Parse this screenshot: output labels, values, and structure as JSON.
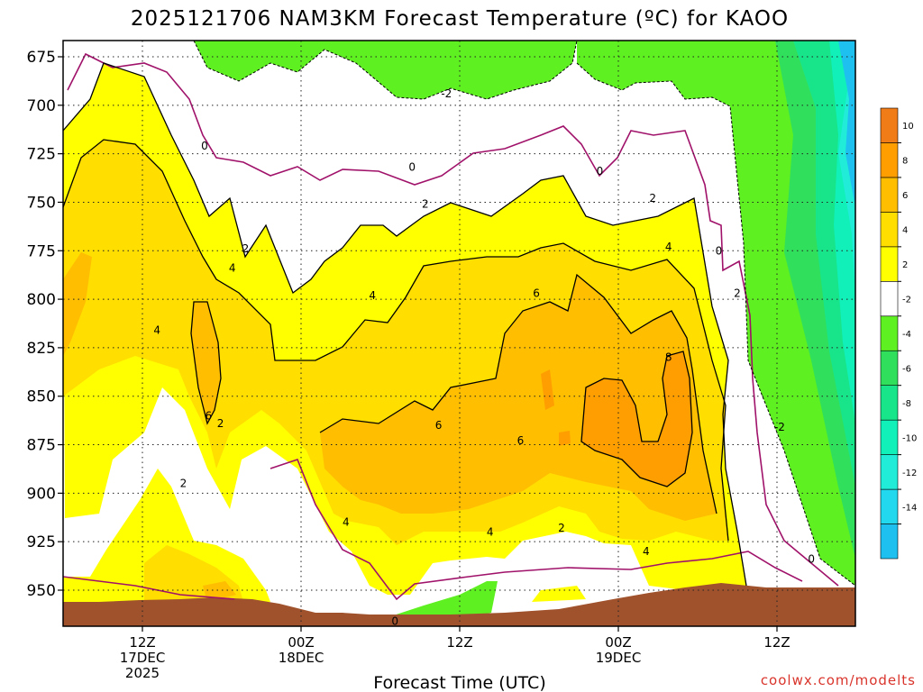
{
  "chart_data": {
    "type": "heatmap",
    "title": "2025121706 NAM3KM Forecast Temperature (ºC) for KAOO",
    "xlabel": "Forecast Time (UTC)",
    "ylabel": "",
    "credit": "coolwx.com/modelts",
    "y_axis": {
      "inverted": true,
      "ylim": [
        960,
        665
      ],
      "ticks": [
        "675",
        "700",
        "725",
        "750",
        "775",
        "800",
        "825",
        "850",
        "875",
        "900",
        "925",
        "950"
      ]
    },
    "x_axis": {
      "ticks": [
        {
          "line1": "12Z",
          "line2": "17DEC",
          "line3": "2025",
          "hour": 6
        },
        {
          "line1": "00Z",
          "line2": "18DEC",
          "line3": "",
          "hour": 18
        },
        {
          "line1": "12Z",
          "line2": "",
          "line3": "",
          "hour": 30
        },
        {
          "line1": "00Z",
          "line2": "19DEC",
          "line3": "",
          "hour": 42
        },
        {
          "line1": "12Z",
          "line2": "",
          "line3": "",
          "hour": 54
        }
      ],
      "xlim": [
        0,
        60
      ]
    },
    "colorbar": [
      {
        "label": "",
        "color": "#1ec0f0"
      },
      {
        "label": "-14",
        "color": "#22d8ee"
      },
      {
        "label": "-12",
        "color": "#20ecd8"
      },
      {
        "label": "-10",
        "color": "#10f0b8"
      },
      {
        "label": "-8",
        "color": "#18e48a"
      },
      {
        "label": "-6",
        "color": "#30e05c"
      },
      {
        "label": "-4",
        "color": "#5ef020"
      },
      {
        "label": "-2",
        "color": "#ffffff"
      },
      {
        "label": "2",
        "color": "#ffff00"
      },
      {
        "label": "4",
        "color": "#ffde00"
      },
      {
        "label": "6",
        "color": "#ffbe00"
      },
      {
        "label": "8",
        "color": "#ff9e00"
      },
      {
        "label": "10",
        "color": "#f07c18"
      }
    ],
    "contour_labels": [
      {
        "text": "-2",
        "hour": 29,
        "p": 694
      },
      {
        "text": "0",
        "hour": 10.7,
        "p": 721
      },
      {
        "text": "0",
        "hour": 26.4,
        "p": 732
      },
      {
        "text": "0",
        "hour": 40.6,
        "p": 734
      },
      {
        "text": "2",
        "hour": 27.4,
        "p": 751
      },
      {
        "text": "2",
        "hour": 44.6,
        "p": 748
      },
      {
        "text": "2",
        "hour": 13.8,
        "p": 774
      },
      {
        "text": "4",
        "hour": 12.8,
        "p": 784
      },
      {
        "text": "4",
        "hour": 45.8,
        "p": 773
      },
      {
        "text": "0",
        "hour": 49.6,
        "p": 775
      },
      {
        "text": "4",
        "hour": 23.4,
        "p": 798
      },
      {
        "text": "6",
        "hour": 35.8,
        "p": 797
      },
      {
        "text": "2",
        "hour": 51,
        "p": 797
      },
      {
        "text": "4",
        "hour": 7.1,
        "p": 816
      },
      {
        "text": "8",
        "hour": 45.8,
        "p": 830
      },
      {
        "text": "6",
        "hour": 11,
        "p": 860
      },
      {
        "text": "2",
        "hour": 11.9,
        "p": 864
      },
      {
        "text": "6",
        "hour": 28.4,
        "p": 865
      },
      {
        "text": "-2",
        "hour": 54.2,
        "p": 866
      },
      {
        "text": "6",
        "hour": 34.6,
        "p": 873
      },
      {
        "text": "2",
        "hour": 9.1,
        "p": 895
      },
      {
        "text": "4",
        "hour": 21.4,
        "p": 915
      },
      {
        "text": "4",
        "hour": 32.3,
        "p": 920
      },
      {
        "text": "2",
        "hour": 37.7,
        "p": 918
      },
      {
        "text": "4",
        "hour": 44.1,
        "p": 930
      },
      {
        "text": "0",
        "hour": 56.6,
        "p": 934
      },
      {
        "text": "0",
        "hour": 25.1,
        "p": 966
      }
    ]
  }
}
